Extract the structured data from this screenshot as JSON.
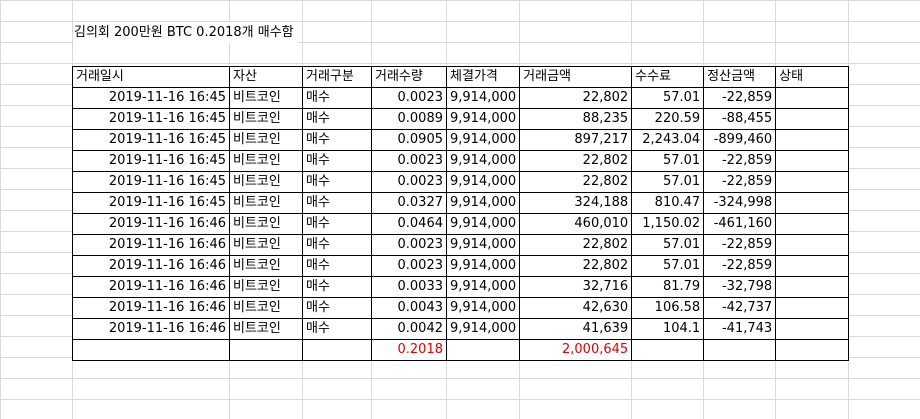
{
  "title": "김의회 200만원 BTC 0.2018개 매수함",
  "columns": [
    "거래일시",
    "자산",
    "거래구분",
    "거래수량",
    "체결가격",
    "거래금액",
    "수수료",
    "정산금액",
    "상태"
  ],
  "rows": [
    {
      "date": "2019-11-16 16:45",
      "asset": "비트코인",
      "type": "매수",
      "qty": "0.0023",
      "price": "9,914,000",
      "amount": "22,802",
      "fee": "57.01",
      "settle": "-22,859",
      "status": ""
    },
    {
      "date": "2019-11-16 16:45",
      "asset": "비트코인",
      "type": "매수",
      "qty": "0.0089",
      "price": "9,914,000",
      "amount": "88,235",
      "fee": "220.59",
      "settle": "-88,455",
      "status": ""
    },
    {
      "date": "2019-11-16 16:45",
      "asset": "비트코인",
      "type": "매수",
      "qty": "0.0905",
      "price": "9,914,000",
      "amount": "897,217",
      "fee": "2,243.04",
      "settle": "-899,460",
      "status": ""
    },
    {
      "date": "2019-11-16 16:45",
      "asset": "비트코인",
      "type": "매수",
      "qty": "0.0023",
      "price": "9,914,000",
      "amount": "22,802",
      "fee": "57.01",
      "settle": "-22,859",
      "status": ""
    },
    {
      "date": "2019-11-16 16:45",
      "asset": "비트코인",
      "type": "매수",
      "qty": "0.0023",
      "price": "9,914,000",
      "amount": "22,802",
      "fee": "57.01",
      "settle": "-22,859",
      "status": ""
    },
    {
      "date": "2019-11-16 16:45",
      "asset": "비트코인",
      "type": "매수",
      "qty": "0.0327",
      "price": "9,914,000",
      "amount": "324,188",
      "fee": "810.47",
      "settle": "-324,998",
      "status": ""
    },
    {
      "date": "2019-11-16 16:46",
      "asset": "비트코인",
      "type": "매수",
      "qty": "0.0464",
      "price": "9,914,000",
      "amount": "460,010",
      "fee": "1,150.02",
      "settle": "-461,160",
      "status": ""
    },
    {
      "date": "2019-11-16 16:46",
      "asset": "비트코인",
      "type": "매수",
      "qty": "0.0023",
      "price": "9,914,000",
      "amount": "22,802",
      "fee": "57.01",
      "settle": "-22,859",
      "status": ""
    },
    {
      "date": "2019-11-16 16:46",
      "asset": "비트코인",
      "type": "매수",
      "qty": "0.0023",
      "price": "9,914,000",
      "amount": "22,802",
      "fee": "57.01",
      "settle": "-22,859",
      "status": ""
    },
    {
      "date": "2019-11-16 16:46",
      "asset": "비트코인",
      "type": "매수",
      "qty": "0.0033",
      "price": "9,914,000",
      "amount": "32,716",
      "fee": "81.79",
      "settle": "-32,798",
      "status": ""
    },
    {
      "date": "2019-11-16 16:46",
      "asset": "비트코인",
      "type": "매수",
      "qty": "0.0043",
      "price": "9,914,000",
      "amount": "42,630",
      "fee": "106.58",
      "settle": "-42,737",
      "status": ""
    },
    {
      "date": "2019-11-16 16:46",
      "asset": "비트코인",
      "type": "매수",
      "qty": "0.0042",
      "price": "9,914,000",
      "amount": "41,639",
      "fee": "104.1",
      "settle": "-41,743",
      "status": ""
    }
  ],
  "totals": {
    "qty": "0.2018",
    "amount": "2,000,645"
  },
  "colors": {
    "total_text": "#e00000",
    "gridline": "#d9d9d9",
    "border": "#000000"
  }
}
